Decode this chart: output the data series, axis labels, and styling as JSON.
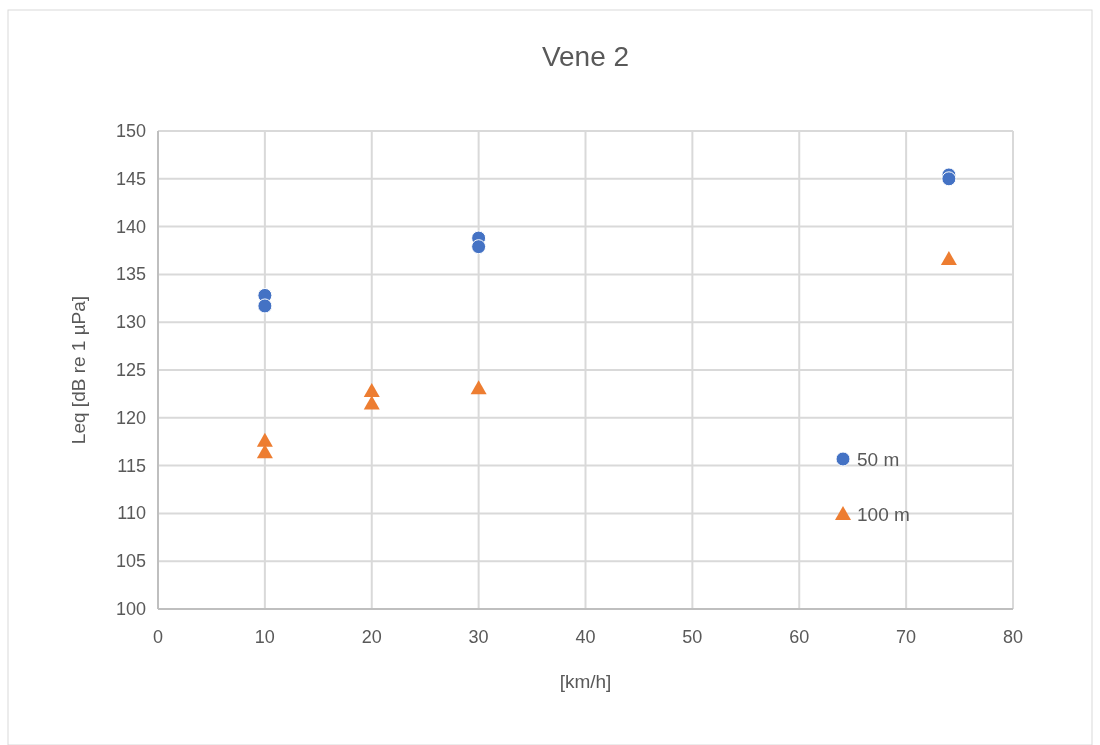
{
  "chart_data": {
    "type": "scatter",
    "title": "Vene 2",
    "xlabel": "[km/h]",
    "ylabel": "Leq [dB re 1 µPa]",
    "xlim": [
      0,
      80
    ],
    "xticks": [
      0,
      10,
      20,
      30,
      40,
      50,
      60,
      70,
      80
    ],
    "ylim": [
      100,
      150
    ],
    "yticks": [
      100,
      105,
      110,
      115,
      120,
      125,
      130,
      135,
      140,
      145,
      150
    ],
    "grid": true,
    "legend": "bottom right",
    "series": [
      {
        "name": "50 m",
        "color": "#4472c4",
        "marker": "circle",
        "x": [
          10,
          10,
          30,
          30,
          74,
          74
        ],
        "values": [
          132.8,
          131.7,
          138.8,
          137.9,
          145.4,
          145.0
        ]
      },
      {
        "name": "100 m",
        "color": "#ed7d31",
        "marker": "triangle",
        "x": [
          10,
          10,
          20,
          20,
          30,
          74
        ],
        "values": [
          117.6,
          116.4,
          122.8,
          121.5,
          123.1,
          136.6
        ]
      }
    ]
  }
}
